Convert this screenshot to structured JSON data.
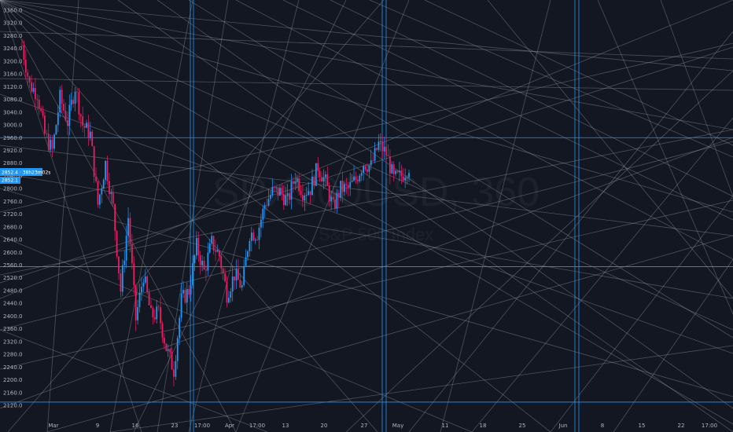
{
  "watermark": {
    "symbol": "SPX500USD, 360",
    "description": "S&P 500 Index"
  },
  "price_badges": {
    "primary": "2852.4 · 38h23m02s",
    "secondary": "2852.1"
  },
  "colors": {
    "background": "#131722",
    "up_candle": "#2196f3",
    "down_candle": "#e91e63",
    "fan_lines": "#9598a1",
    "level_lines": "#2196f3",
    "badge": "#2196f3",
    "axis_text": "#b2b5be"
  },
  "chart_data": {
    "type": "candlestick",
    "title": "",
    "ylim": [
      2110,
      3370
    ],
    "y_ticks": [
      3360,
      3320,
      3280,
      3240,
      3200,
      3160,
      3120,
      3080,
      3040,
      3000,
      2960,
      2920,
      2880,
      2840,
      2800,
      2760,
      2720,
      2680,
      2640,
      2600,
      2560,
      2520,
      2480,
      2440,
      2400,
      2360,
      2320,
      2280,
      2240,
      2200,
      2160,
      2120
    ],
    "y_tick_labels": [
      "3360.0",
      "3320.0",
      "3280.0",
      "3240.0",
      "3200.0",
      "3160.0",
      "3120.0",
      "3080.0",
      "3040.0",
      "3000.0",
      "2960.0",
      "2920.0",
      "2880.0",
      "2840.0",
      "2800.0",
      "2760.0",
      "2720.0",
      "2680.0",
      "2640.0",
      "2600.0",
      "2560.0",
      "2520.0",
      "2480.0",
      "2440.0",
      "2400.0",
      "2360.0",
      "2320.0",
      "2280.0",
      "2240.0",
      "2200.0",
      "2160.0",
      "2120.0"
    ],
    "x_tick_labels": [
      "Mar",
      "9",
      "16",
      "23",
      "17:00",
      "Apr",
      "17:00",
      "13",
      "20",
      "27",
      "May",
      "11",
      "18",
      "25",
      "Jun",
      "8",
      "15",
      "22",
      "17:00"
    ],
    "horizontal_levels": [
      2960,
      2555,
      2130
    ],
    "vertical_markers": [
      "Mar 23",
      "Apr 28",
      "Jun 4"
    ],
    "close_path": [
      [
        "Feb 24",
        3250
      ],
      [
        "Feb 25",
        3125
      ],
      [
        "Feb 26",
        3100
      ],
      [
        "Feb 27",
        2970
      ],
      [
        "Feb 28",
        2920
      ],
      [
        "Mar 2",
        3085
      ],
      [
        "Mar 3",
        3010
      ],
      [
        "Mar 4",
        3120
      ],
      [
        "Mar 5",
        3000
      ],
      [
        "Mar 6",
        2970
      ],
      [
        "Mar 9",
        2750
      ],
      [
        "Mar 10",
        2880
      ],
      [
        "Mar 11",
        2740
      ],
      [
        "Mar 12",
        2480
      ],
      [
        "Mar 13",
        2710
      ],
      [
        "Mar 16",
        2390
      ],
      [
        "Mar 17",
        2530
      ],
      [
        "Mar 18",
        2400
      ],
      [
        "Mar 19",
        2410
      ],
      [
        "Mar 20",
        2300
      ],
      [
        "Mar 23",
        2230
      ],
      [
        "Mar 24",
        2450
      ],
      [
        "Mar 25",
        2480
      ],
      [
        "Mar 26",
        2620
      ],
      [
        "Mar 27",
        2540
      ],
      [
        "Mar 30",
        2630
      ],
      [
        "Mar 31",
        2590
      ],
      [
        "Apr 1",
        2470
      ],
      [
        "Apr 2",
        2530
      ],
      [
        "Apr 3",
        2490
      ],
      [
        "Apr 6",
        2660
      ],
      [
        "Apr 7",
        2660
      ],
      [
        "Apr 8",
        2750
      ],
      [
        "Apr 9",
        2790
      ],
      [
        "Apr 10",
        2790
      ],
      [
        "Apr 13",
        2760
      ],
      [
        "Apr 14",
        2840
      ],
      [
        "Apr 15",
        2790
      ],
      [
        "Apr 16",
        2800
      ],
      [
        "Apr 17",
        2870
      ],
      [
        "Apr 20",
        2820
      ],
      [
        "Apr 21",
        2740
      ],
      [
        "Apr 22",
        2800
      ],
      [
        "Apr 23",
        2800
      ],
      [
        "Apr 24",
        2830
      ],
      [
        "Apr 27",
        2880
      ],
      [
        "Apr 28",
        2870
      ],
      [
        "Apr 29",
        2940
      ],
      [
        "Apr 30",
        2910
      ],
      [
        "May 1",
        2830
      ],
      [
        "May 4",
        2840
      ],
      [
        "May 5",
        2870
      ]
    ]
  }
}
